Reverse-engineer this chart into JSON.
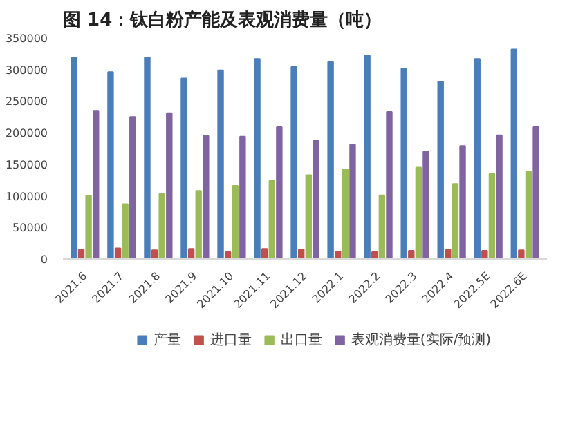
{
  "chart_data": {
    "type": "bar",
    "title": "图 14：钛白粉产能及表观消费量（吨）",
    "categories": [
      "2021.6",
      "2021.7",
      "2021.8",
      "2021.9",
      "2021.10",
      "2021.11",
      "2021.12",
      "2022.1",
      "2022.2",
      "2022.3",
      "2022.4",
      "2022.5E",
      "2022.6E"
    ],
    "series": [
      {
        "name": "产量",
        "color": "#4a7ebb",
        "values": [
          319000,
          296000,
          319000,
          286000,
          299000,
          317000,
          304000,
          312000,
          322000,
          302000,
          281000,
          317000,
          332000
        ]
      },
      {
        "name": "进口量",
        "color": "#c0504d",
        "values": [
          15000,
          17000,
          14000,
          16000,
          11000,
          16000,
          15000,
          12000,
          11000,
          13000,
          15000,
          13000,
          14000
        ]
      },
      {
        "name": "出口量",
        "color": "#9bbb59",
        "values": [
          100000,
          87000,
          103000,
          108000,
          116000,
          124000,
          133000,
          142000,
          101000,
          145000,
          119000,
          135000,
          138000
        ]
      },
      {
        "name": "表观消费量(实际/预测)",
        "color": "#8064a2",
        "values": [
          235000,
          225000,
          231000,
          195000,
          194000,
          209000,
          187000,
          181000,
          233000,
          170000,
          179000,
          196000,
          209000
        ]
      }
    ],
    "ylim": [
      0,
      350000
    ],
    "yticks": [
      0,
      50000,
      100000,
      150000,
      200000,
      250000,
      300000,
      350000
    ],
    "grid": false,
    "legend": "bottom"
  }
}
